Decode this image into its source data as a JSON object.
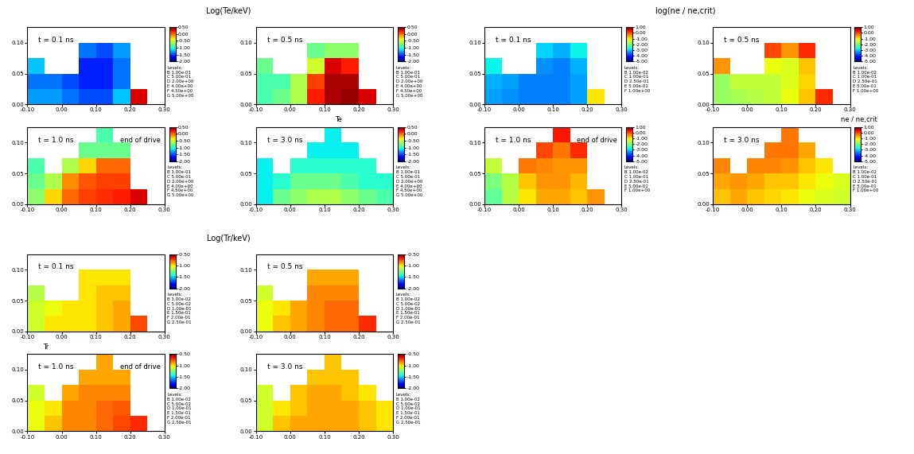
{
  "chart_data": {
    "type": "heatmap",
    "x_edges": [
      -0.1,
      -0.05,
      0,
      0.05,
      0.1,
      0.15,
      0.2,
      0.25,
      0.3
    ],
    "y_edges": [
      0,
      0.025,
      0.05,
      0.075,
      0.1,
      0.125
    ],
    "xlim": [
      -0.1,
      0.3
    ],
    "ylim": [
      0,
      0.125
    ],
    "xticks": [
      {
        "value": -0.1,
        "label": "-0.10"
      },
      {
        "value": 0,
        "label": "0.00"
      },
      {
        "value": 0.1,
        "label": "0.10"
      },
      {
        "value": 0.2,
        "label": "0.20"
      },
      {
        "value": 0.3,
        "label": "0.30"
      }
    ],
    "yticks": [
      {
        "value": 0,
        "label": "0.00"
      },
      {
        "value": 0.05,
        "label": "0.05"
      },
      {
        "value": 0.1,
        "label": "0.10"
      }
    ],
    "panels": [
      {
        "title": "Log(Te/keV)",
        "label": "Te",
        "colorbar": {
          "range": [
            -2.0,
            0.5
          ],
          "ticks": [
            {
              "value": 0.5,
              "label": "0.50"
            },
            {
              "value": 0,
              "label": "0.00"
            },
            {
              "value": -0.5,
              "label": "-0.50"
            },
            {
              "value": -1.0,
              "label": "-1.00"
            },
            {
              "value": -1.5,
              "label": "-1.50"
            },
            {
              "value": -2.0,
              "label": "-2.00"
            }
          ]
        },
        "levels_title": "Levels:",
        "levels": [
          [
            "B",
            "1.00e-01"
          ],
          [
            "C",
            "5.00e-01"
          ],
          [
            "D",
            "2.00e+00"
          ],
          [
            "E",
            "4.00e+00"
          ],
          [
            "F",
            "4.50e+00"
          ],
          [
            "G",
            "5.00e+00"
          ]
        ],
        "subplots": [
          {
            "time": "t = 0.1 ns",
            "cells": [
              [
                -1.3,
                -1.3,
                -1.4,
                -1.5,
                -1.5,
                -1.2,
                0.3,
                null
              ],
              [
                -1.4,
                -1.4,
                -1.5,
                -1.6,
                -1.6,
                -1.4,
                null,
                null
              ],
              [
                -1.2,
                null,
                null,
                -1.6,
                -1.6,
                -1.4,
                null,
                null
              ],
              [
                null,
                null,
                null,
                -1.4,
                -1.5,
                -1.3,
                null,
                null
              ],
              [
                null,
                null,
                null,
                null,
                null,
                null,
                null,
                null
              ]
            ]
          },
          {
            "time": "t = 0.5 ns",
            "cells": [
              [
                -0.9,
                -0.8,
                -0.6,
                0.2,
                0.4,
                0.45,
                0.3,
                null
              ],
              [
                -0.9,
                -0.9,
                -0.6,
                0.1,
                0.4,
                0.4,
                null,
                null
              ],
              [
                -0.8,
                null,
                null,
                -0.5,
                0.3,
                0.2,
                null,
                null
              ],
              [
                null,
                null,
                null,
                -0.8,
                -0.7,
                -0.7,
                null,
                null
              ],
              [
                null,
                null,
                null,
                null,
                null,
                null,
                null,
                null
              ]
            ]
          },
          {
            "time": "t = 1.0 ns",
            "note": "end of drive",
            "cells": [
              [
                -0.7,
                -0.3,
                0.0,
                0.1,
                0.15,
                0.2,
                0.3,
                null
              ],
              [
                -0.8,
                -0.6,
                -0.1,
                0.05,
                0.1,
                0.1,
                null,
                null
              ],
              [
                -0.9,
                null,
                -0.6,
                -0.3,
                0.0,
                0.0,
                null,
                null
              ],
              [
                null,
                null,
                null,
                -0.8,
                -0.8,
                -0.8,
                null,
                null
              ],
              [
                null,
                null,
                null,
                null,
                -0.9,
                null,
                null,
                null
              ]
            ]
          },
          {
            "time": "t = 3.0 ns",
            "cells": [
              [
                -1.1,
                -0.8,
                -0.7,
                -0.6,
                -0.6,
                -0.7,
                -0.8,
                -0.9
              ],
              [
                -1.1,
                -1.0,
                -0.8,
                -0.8,
                -0.8,
                -0.9,
                -1.0,
                -1.0
              ],
              [
                -1.1,
                null,
                -1.0,
                -1.0,
                -1.0,
                -1.0,
                -1.0,
                null
              ],
              [
                null,
                null,
                null,
                -1.1,
                -1.1,
                -1.1,
                null,
                null
              ],
              [
                null,
                null,
                null,
                null,
                -1.1,
                null,
                null,
                null
              ]
            ]
          }
        ]
      },
      {
        "title": "log(ne / ne,crit)",
        "label": "ne / ne,crit",
        "colorbar": {
          "range": [
            -5.0,
            1.0
          ],
          "ticks": [
            {
              "value": 1.0,
              "label": "1.00"
            },
            {
              "value": 0,
              "label": "0.00"
            },
            {
              "value": -1.0,
              "label": "-1.00"
            },
            {
              "value": -2.0,
              "label": "-2.00"
            },
            {
              "value": -3.0,
              "label": "-3.00"
            },
            {
              "value": -4.0,
              "label": "-4.00"
            },
            {
              "value": -5.0,
              "label": "-5.00"
            }
          ]
        },
        "levels_title": "Levels:",
        "levels": [
          [
            "B",
            "1.00e-02"
          ],
          [
            "C",
            "1.00e-01"
          ],
          [
            "D",
            "2.50e-01"
          ],
          [
            "E",
            "5.00e-01"
          ],
          [
            "F",
            "1.00e+00"
          ]
        ],
        "subplots": [
          {
            "time": "t = 0.1 ns",
            "cells": [
              [
                -3.3,
                -3.4,
                -3.5,
                -3.5,
                -3.5,
                -3.3,
                -1.0,
                null
              ],
              [
                -3.2,
                -3.3,
                -3.5,
                -3.5,
                -3.5,
                -3.3,
                null,
                null
              ],
              [
                -2.8,
                null,
                null,
                -3.4,
                -3.5,
                -3.2,
                null,
                null
              ],
              [
                null,
                null,
                null,
                -3.0,
                -3.2,
                -2.8,
                null,
                null
              ],
              [
                null,
                null,
                null,
                null,
                null,
                null,
                null,
                null
              ]
            ]
          },
          {
            "time": "t = 0.5 ns",
            "cells": [
              [
                -1.8,
                -1.7,
                -1.6,
                -1.5,
                -1.2,
                -0.8,
                0.2,
                null
              ],
              [
                -1.8,
                -1.5,
                -1.5,
                -1.5,
                -1.3,
                -0.9,
                null,
                null
              ],
              [
                -0.5,
                null,
                null,
                -1.2,
                -1.3,
                -0.8,
                null,
                null
              ],
              [
                null,
                null,
                null,
                0.0,
                -0.5,
                0.2,
                null,
                null
              ],
              [
                null,
                null,
                null,
                null,
                null,
                null,
                null,
                null
              ]
            ]
          },
          {
            "time": "t = 1.0 ns",
            "note": "end of drive",
            "cells": [
              [
                -2.2,
                -1.6,
                -1.0,
                -0.6,
                -0.6,
                -0.8,
                -0.5,
                null
              ],
              [
                -2.0,
                -1.6,
                -0.8,
                -0.5,
                -0.5,
                -0.7,
                null,
                null
              ],
              [
                -1.5,
                null,
                -0.3,
                -0.4,
                -0.5,
                -0.5,
                null,
                null
              ],
              [
                null,
                null,
                null,
                0.0,
                -0.3,
                0.2,
                null,
                null
              ],
              [
                null,
                null,
                null,
                null,
                0.3,
                null,
                null,
                null
              ]
            ]
          },
          {
            "time": "t = 3.0 ns",
            "cells": [
              [
                -0.8,
                -0.6,
                -0.8,
                -0.9,
                -1.0,
                -1.2,
                -1.3,
                -1.4
              ],
              [
                -0.6,
                -0.5,
                -0.6,
                -0.8,
                -0.8,
                -1.0,
                -1.2,
                -1.3
              ],
              [
                -0.4,
                null,
                -0.4,
                -0.4,
                -0.5,
                -0.8,
                -1.0,
                null
              ],
              [
                null,
                null,
                null,
                -0.3,
                -0.3,
                -0.6,
                null,
                null
              ],
              [
                null,
                null,
                null,
                null,
                -0.3,
                null,
                null,
                null
              ]
            ]
          }
        ]
      },
      {
        "title": "Log(Tr/keV)",
        "label": "Tr",
        "colorbar": {
          "range": [
            -2.0,
            -0.5
          ],
          "ticks": [
            {
              "value": -0.5,
              "label": "-0.50"
            },
            {
              "value": -1.0,
              "label": "-1.00"
            },
            {
              "value": -1.5,
              "label": "-1.50"
            },
            {
              "value": -2.0,
              "label": "-2.00"
            }
          ]
        },
        "levels_title": "Levels:",
        "levels": [
          [
            "B",
            "1.00e-02"
          ],
          [
            "C",
            "5.00e-02"
          ],
          [
            "D",
            "1.00e-01"
          ],
          [
            "E",
            "1.50e-01"
          ],
          [
            "F",
            "2.00e-01"
          ],
          [
            "G",
            "2.50e-01"
          ]
        ],
        "subplots": [
          {
            "time": "t = 0.1 ns",
            "cells": [
              [
                -1.1,
                -1.0,
                -1.0,
                -1.0,
                -0.95,
                -0.9,
                -0.75,
                null
              ],
              [
                -1.1,
                -1.05,
                -1.0,
                -1.0,
                -0.95,
                -0.9,
                null,
                null
              ],
              [
                -1.15,
                null,
                null,
                -1.0,
                -0.95,
                -0.95,
                null,
                null
              ],
              [
                null,
                null,
                null,
                -1.0,
                -1.0,
                -1.0,
                null,
                null
              ],
              [
                null,
                null,
                null,
                null,
                null,
                null,
                null,
                null
              ]
            ]
          },
          {
            "time": "t = 0.5 ns",
            "cells": [
              [
                -1.05,
                -0.95,
                -0.9,
                -0.85,
                -0.8,
                -0.8,
                -0.7,
                null
              ],
              [
                -1.05,
                -1.0,
                -0.9,
                -0.85,
                -0.8,
                -0.8,
                null,
                null
              ],
              [
                -1.1,
                null,
                null,
                -0.85,
                -0.85,
                -0.85,
                null,
                null
              ],
              [
                null,
                null,
                null,
                -0.9,
                -0.9,
                -0.9,
                null,
                null
              ],
              [
                null,
                null,
                null,
                null,
                null,
                null,
                null,
                null
              ]
            ]
          },
          {
            "time": "t = 1.0 ns",
            "note": "end of drive",
            "cells": [
              [
                -1.05,
                -0.95,
                -0.85,
                -0.85,
                -0.8,
                -0.75,
                -0.7,
                null
              ],
              [
                -1.05,
                -1.0,
                -0.85,
                -0.85,
                -0.8,
                -0.78,
                null,
                null
              ],
              [
                -1.1,
                null,
                -0.9,
                -0.85,
                -0.85,
                -0.85,
                null,
                null
              ],
              [
                null,
                null,
                null,
                -0.9,
                -0.9,
                -0.9,
                null,
                null
              ],
              [
                null,
                null,
                null,
                null,
                -0.9,
                null,
                null,
                null
              ]
            ]
          },
          {
            "time": "t = 3.0 ns",
            "cells": [
              [
                -1.1,
                -0.95,
                -0.9,
                -0.9,
                -0.9,
                -0.9,
                -0.95,
                -1.0
              ],
              [
                -1.1,
                -1.0,
                -0.95,
                -0.9,
                -0.9,
                -0.9,
                -0.95,
                -1.0
              ],
              [
                -1.1,
                null,
                -0.95,
                -0.9,
                -0.9,
                -0.95,
                -1.0,
                null
              ],
              [
                null,
                null,
                null,
                -0.95,
                -0.95,
                -0.95,
                null,
                null
              ],
              [
                null,
                null,
                null,
                null,
                -0.95,
                null,
                null,
                null
              ]
            ]
          }
        ]
      }
    ]
  }
}
